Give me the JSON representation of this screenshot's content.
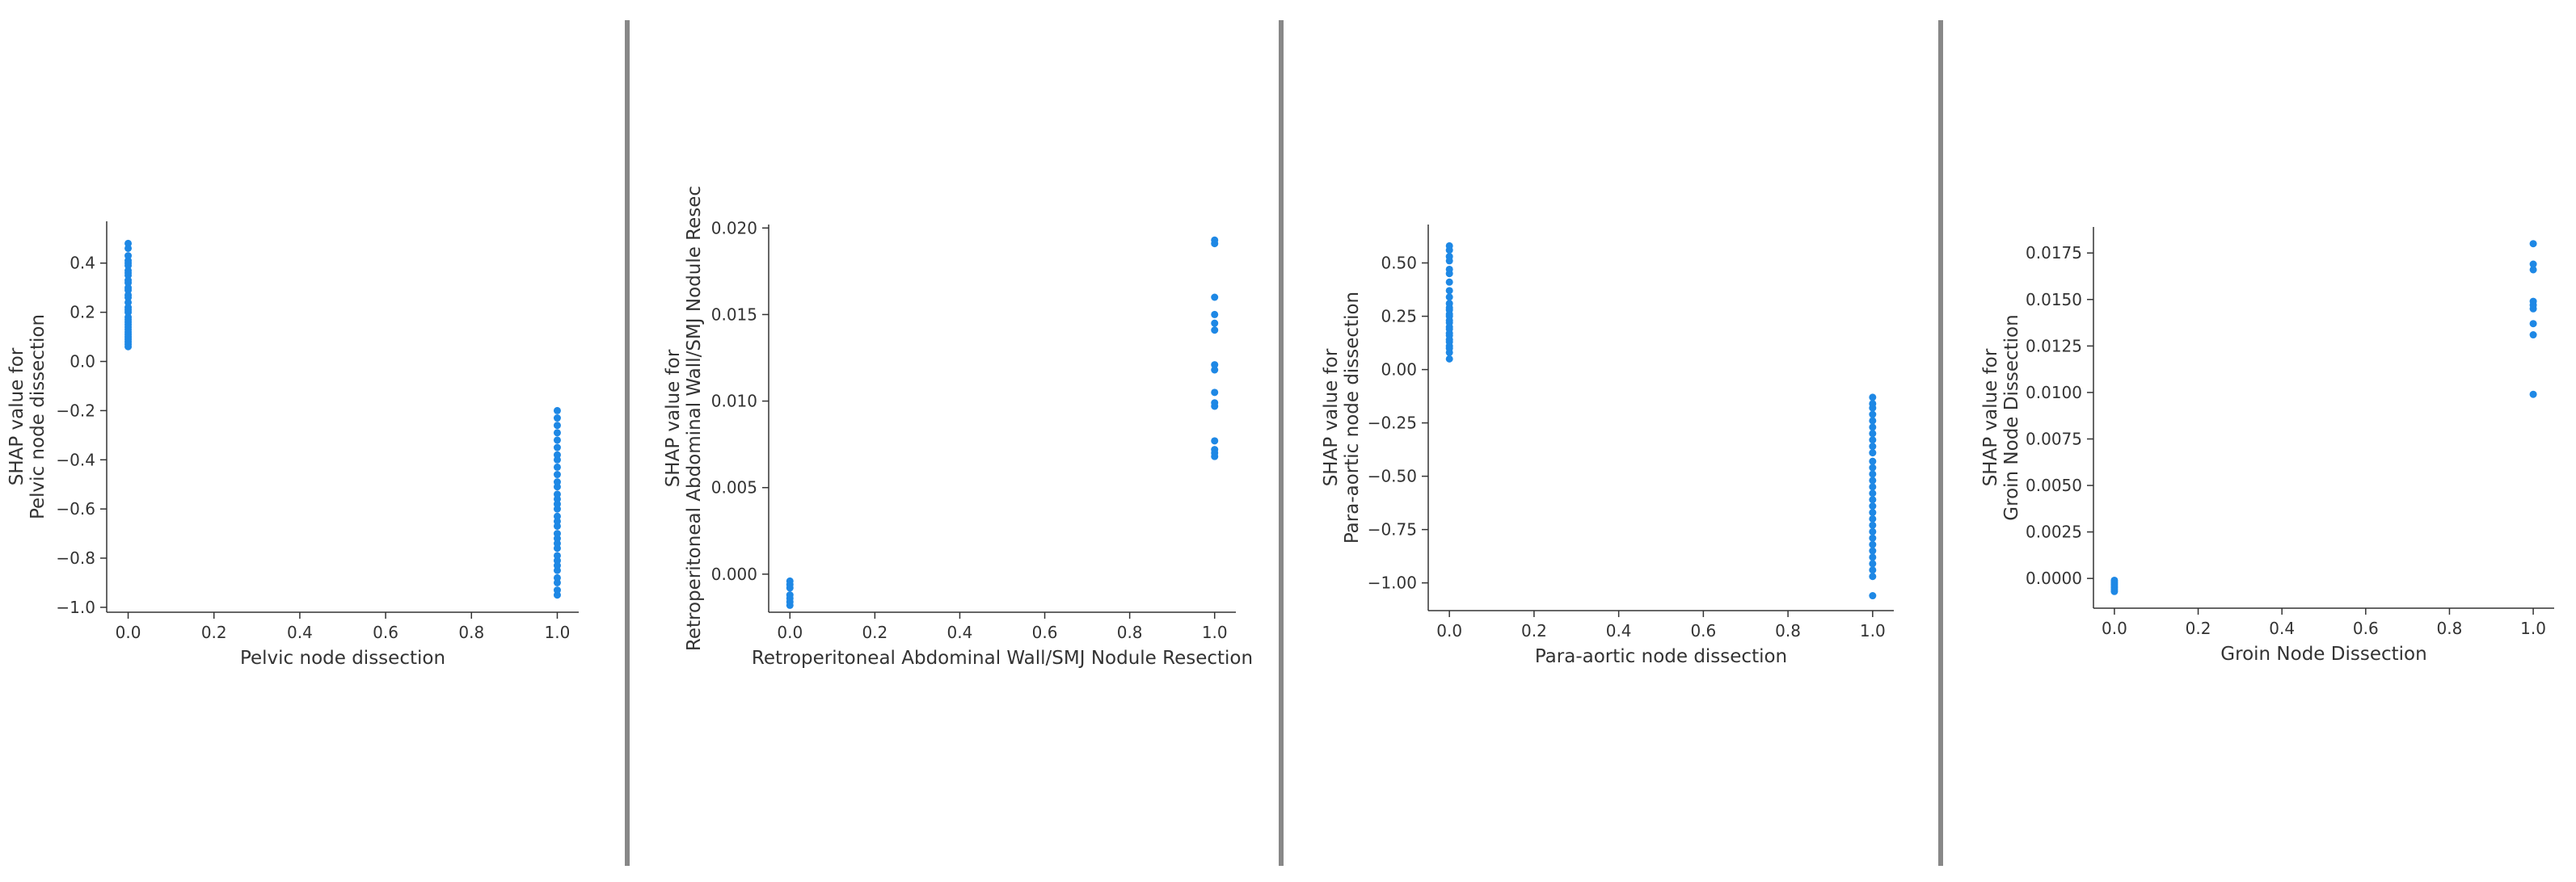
{
  "colors": {
    "point": "#1e88e5",
    "axis": "#333333",
    "divider": "#888888"
  },
  "chart_data": [
    {
      "type": "scatter",
      "xlabel": "Pelvic node dissection",
      "ylabel_line1": "SHAP value for",
      "ylabel_line2": "Pelvic node dissection",
      "xlim": [
        -0.05,
        1.05
      ],
      "ylim": [
        -1.02,
        0.57
      ],
      "xticks": [
        0.0,
        0.2,
        0.4,
        0.6,
        0.8,
        1.0
      ],
      "xtick_labels": [
        "0.0",
        "0.2",
        "0.4",
        "0.6",
        "0.8",
        "1.0"
      ],
      "yticks": [
        -1.0,
        -0.8,
        -0.6,
        -0.4,
        -0.2,
        0.0,
        0.2,
        0.4
      ],
      "ytick_labels": [
        "−1.0",
        "−0.8",
        "−0.6",
        "−0.4",
        "−0.2",
        "0.0",
        "0.2",
        "0.4"
      ],
      "points": {
        "x0": [
          0.48,
          0.46,
          0.43,
          0.41,
          0.4,
          0.39,
          0.37,
          0.36,
          0.35,
          0.33,
          0.32,
          0.3,
          0.29,
          0.27,
          0.26,
          0.24,
          0.22,
          0.21,
          0.2,
          0.18,
          0.17,
          0.16,
          0.15,
          0.14,
          0.13,
          0.12,
          0.11,
          0.1,
          0.09,
          0.08,
          0.07,
          0.06
        ],
        "x1": [
          -0.2,
          -0.23,
          -0.26,
          -0.29,
          -0.32,
          -0.35,
          -0.38,
          -0.4,
          -0.43,
          -0.46,
          -0.49,
          -0.51,
          -0.54,
          -0.56,
          -0.58,
          -0.6,
          -0.63,
          -0.65,
          -0.67,
          -0.7,
          -0.72,
          -0.74,
          -0.76,
          -0.79,
          -0.81,
          -0.83,
          -0.85,
          -0.88,
          -0.9,
          -0.93,
          -0.95
        ]
      }
    },
    {
      "type": "scatter",
      "xlabel": "Retroperitoneal Abdominal Wall/SMJ Nodule Resection",
      "ylabel_line1": "SHAP value for",
      "ylabel_line2": "Retroperitoneal Abdominal Wall/SMJ Nodule Resec",
      "xlim": [
        -0.05,
        1.05
      ],
      "ylim": [
        -0.0022,
        0.0202
      ],
      "xticks": [
        0.0,
        0.2,
        0.4,
        0.6,
        0.8,
        1.0
      ],
      "xtick_labels": [
        "0.0",
        "0.2",
        "0.4",
        "0.6",
        "0.8",
        "1.0"
      ],
      "yticks": [
        0.0,
        0.005,
        0.01,
        0.015,
        0.02
      ],
      "ytick_labels": [
        "0.000",
        "0.005",
        "0.010",
        "0.015",
        "0.020"
      ],
      "points": {
        "x0": [
          -0.0004,
          -0.0006,
          -0.0008,
          -0.0012,
          -0.0014,
          -0.0016,
          -0.0018
        ],
        "x1": [
          0.0193,
          0.0191,
          0.016,
          0.015,
          0.0145,
          0.0141,
          0.0121,
          0.0118,
          0.0105,
          0.0099,
          0.0097,
          0.0077,
          0.0072,
          0.007,
          0.0068
        ]
      }
    },
    {
      "type": "scatter",
      "xlabel": "Para-aortic node dissection",
      "ylabel_line1": "SHAP value for",
      "ylabel_line2": "Para-aortic node dissection",
      "xlim": [
        -0.05,
        1.05
      ],
      "ylim": [
        -1.13,
        0.68
      ],
      "xticks": [
        0.0,
        0.2,
        0.4,
        0.6,
        0.8,
        1.0
      ],
      "xtick_labels": [
        "0.0",
        "0.2",
        "0.4",
        "0.6",
        "0.8",
        "1.0"
      ],
      "yticks": [
        -1.0,
        -0.75,
        -0.5,
        -0.25,
        0.0,
        0.25,
        0.5
      ],
      "ytick_labels": [
        "−1.00",
        "−0.75",
        "−0.50",
        "−0.25",
        "0.00",
        "0.25",
        "0.50"
      ],
      "points": {
        "x0": [
          0.58,
          0.56,
          0.53,
          0.51,
          0.47,
          0.45,
          0.41,
          0.37,
          0.34,
          0.31,
          0.29,
          0.28,
          0.26,
          0.25,
          0.23,
          0.22,
          0.2,
          0.19,
          0.17,
          0.16,
          0.14,
          0.13,
          0.11,
          0.1,
          0.08,
          0.05
        ],
        "x1": [
          -0.13,
          -0.16,
          -0.18,
          -0.21,
          -0.24,
          -0.27,
          -0.3,
          -0.33,
          -0.36,
          -0.39,
          -0.43,
          -0.46,
          -0.49,
          -0.52,
          -0.55,
          -0.58,
          -0.61,
          -0.64,
          -0.67,
          -0.7,
          -0.73,
          -0.76,
          -0.79,
          -0.82,
          -0.85,
          -0.88,
          -0.91,
          -0.94,
          -0.97,
          -1.06
        ]
      }
    },
    {
      "type": "scatter",
      "xlabel": "Groin Node Dissection",
      "ylabel_line1": "SHAP value for",
      "ylabel_line2": "Groin Node Dissection",
      "xlim": [
        -0.05,
        1.05
      ],
      "ylim": [
        -0.0016,
        0.0189
      ],
      "xticks": [
        0.0,
        0.2,
        0.4,
        0.6,
        0.8,
        1.0
      ],
      "xtick_labels": [
        "0.0",
        "0.2",
        "0.4",
        "0.6",
        "0.8",
        "1.0"
      ],
      "yticks": [
        0.0,
        0.0025,
        0.005,
        0.0075,
        0.01,
        0.0125,
        0.015,
        0.0175
      ],
      "ytick_labels": [
        "0.0000",
        "0.0025",
        "0.0050",
        "0.0075",
        "0.0100",
        "0.0125",
        "0.0150",
        "0.0175"
      ],
      "points": {
        "x0": [
          -0.0001,
          -0.0002,
          -0.0003,
          -0.0004,
          -0.0005,
          -0.0006,
          -0.0007
        ],
        "x1": [
          0.018,
          0.0169,
          0.0166,
          0.0149,
          0.0147,
          0.0145,
          0.0137,
          0.0131,
          0.0099
        ]
      }
    }
  ]
}
